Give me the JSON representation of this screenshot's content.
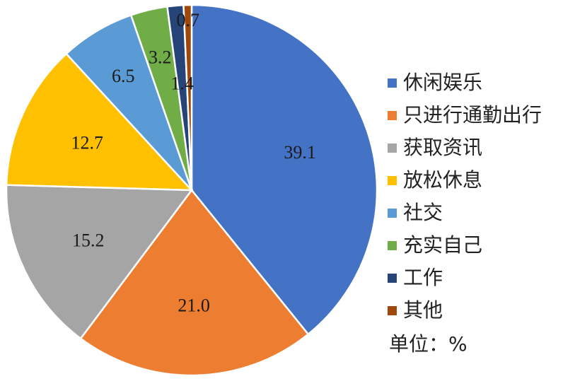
{
  "chart_data": {
    "type": "pie",
    "slices": [
      {
        "label": "休闲娱乐",
        "value": 39.1,
        "display": "39.1",
        "color": "#4472C4"
      },
      {
        "label": "只进行通勤出行",
        "value": 21.0,
        "display": "21.0",
        "color": "#ED7D31"
      },
      {
        "label": "获取资讯",
        "value": 15.2,
        "display": "15.2",
        "color": "#A5A5A5"
      },
      {
        "label": "放松休息",
        "value": 12.7,
        "display": "12.7",
        "color": "#FFC000"
      },
      {
        "label": "社交",
        "value": 6.5,
        "display": "6.5",
        "color": "#5B9BD5"
      },
      {
        "label": "充实自己",
        "value": 3.2,
        "display": "3.2",
        "color": "#70AD47"
      },
      {
        "label": "工作",
        "value": 1.4,
        "display": "1.4",
        "color": "#264478"
      },
      {
        "label": "其他",
        "value": 0.7,
        "display": "0.7",
        "color": "#9E480E"
      }
    ],
    "legend_position": "right",
    "unit_label": "单位：%"
  }
}
